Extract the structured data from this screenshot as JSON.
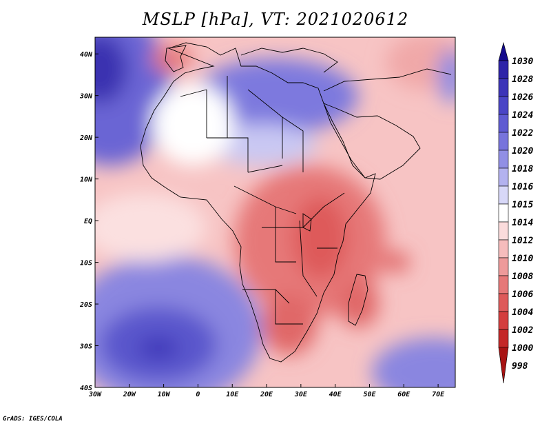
{
  "title": "MSLP [hPa], VT: 2021020612",
  "credit": "GrADS: IGES/COLA",
  "map": {
    "lon_ticks": [
      "30W",
      "20W",
      "10W",
      "0",
      "10E",
      "20E",
      "30E",
      "40E",
      "50E",
      "60E",
      "70E"
    ],
    "lat_ticks": [
      "40N",
      "30N",
      "20N",
      "10N",
      "EQ",
      "10S",
      "20S",
      "30S",
      "40S"
    ],
    "lon_range": [
      -30,
      75
    ],
    "lat_range": [
      -40,
      44
    ]
  },
  "colorbar": {
    "levels": [
      "1030",
      "1028",
      "1026",
      "1024",
      "1022",
      "1020",
      "1018",
      "1016",
      "1015",
      "1014",
      "1012",
      "1010",
      "1008",
      "1006",
      "1004",
      "1002",
      "1000",
      "998"
    ],
    "colors": [
      "#140a8c",
      "#2d23a8",
      "#3c34b8",
      "#4a45c6",
      "#5f5bd2",
      "#7774dc",
      "#918fe5",
      "#b3b2ef",
      "#d8d8f8",
      "#ffffff",
      "#fbdcdc",
      "#f6bcbc",
      "#ee9a9a",
      "#e67878",
      "#de5a5a",
      "#d43e3e",
      "#c42828",
      "#a81414"
    ]
  }
}
